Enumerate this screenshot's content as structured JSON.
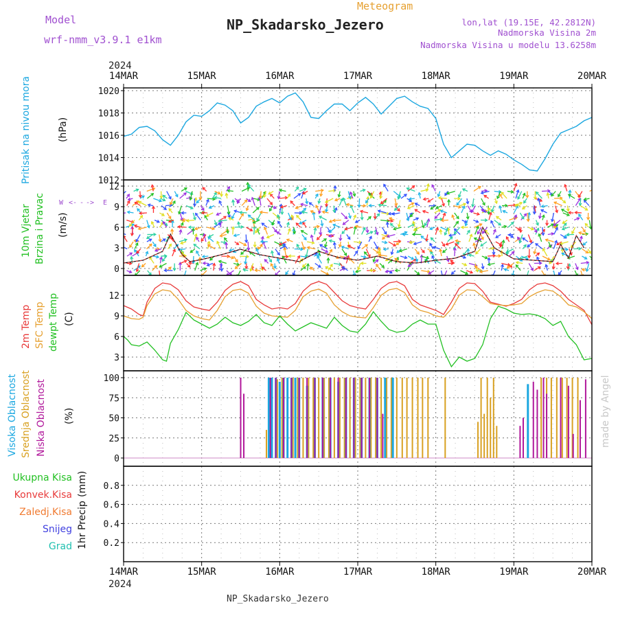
{
  "header": {
    "model_label": "Model",
    "model_name": "wrf-nmm_v3.9.1 e1km",
    "meteogram": "Meteogram",
    "station": "NP_Skadarsko_Jezero",
    "lonlat": "lon,lat (19.15E, 42.2812N)",
    "elev": "Nadmorska Visina 2m",
    "elev_model": "Nadmorska Visina u modelu 13.6258m",
    "footer_station": "NP_Skadarsko_Jezero",
    "credit": "made by Angel"
  },
  "colors": {
    "pressure": "#1ba7e0",
    "wind_green": "#22c022",
    "temp2m": "#e83a3a",
    "sfc": "#e6a030",
    "dewpt": "#22c022",
    "cloud_high": "#1ba7e0",
    "cloud_mid": "#d8a020",
    "cloud_low": "#b0169a",
    "violet": "#a050d0"
  },
  "chart_data": [
    {
      "type": "line",
      "panel": "pressure",
      "ylabel_title": "Pritisak na nivou mora",
      "ylabel_unit": "(hPa)",
      "ylim": [
        1012,
        1020
      ],
      "yticks": [
        "1012",
        "1014",
        "1016",
        "1018",
        "1020"
      ],
      "grid": true,
      "series": [
        {
          "x": [
            0,
            0.1,
            0.2,
            0.3,
            0.4,
            0.5,
            0.6,
            0.7,
            0.8,
            0.9,
            1.0,
            1.1,
            1.2,
            1.3,
            1.4,
            1.5,
            1.6,
            1.7,
            1.8,
            1.9,
            2.0,
            2.1,
            2.2,
            2.3,
            2.4,
            2.5,
            2.6,
            2.7,
            2.8,
            2.9,
            3.0,
            3.1,
            3.2,
            3.3,
            3.4,
            3.5,
            3.6,
            3.7,
            3.8,
            3.9,
            4.0,
            4.1,
            4.2,
            4.3,
            4.4,
            4.5,
            4.6,
            4.7,
            4.8,
            4.9,
            5.0,
            5.1,
            5.2,
            5.3,
            5.4,
            5.5,
            5.6,
            5.7,
            5.8,
            5.9,
            6.0
          ],
          "y": [
            1015.9,
            1016.1,
            1016.7,
            1016.8,
            1016.4,
            1015.6,
            1015.1,
            1016.0,
            1017.2,
            1017.8,
            1017.7,
            1018.2,
            1018.9,
            1018.7,
            1018.2,
            1017.1,
            1017.6,
            1018.6,
            1019.0,
            1019.3,
            1018.9,
            1019.5,
            1019.8,
            1019.0,
            1017.6,
            1017.5,
            1018.2,
            1018.8,
            1018.8,
            1018.2,
            1018.9,
            1019.4,
            1018.8,
            1017.9,
            1018.6,
            1019.3,
            1019.5,
            1019.0,
            1018.6,
            1018.4,
            1017.5,
            1015.2,
            1014.0,
            1014.6,
            1015.2,
            1015.1,
            1014.6,
            1014.2,
            1014.6,
            1014.3,
            1013.8,
            1013.4,
            1012.9,
            1012.8,
            1013.9,
            1015.2,
            1016.2,
            1016.5,
            1016.8,
            1017.3,
            1017.6
          ]
        }
      ]
    },
    {
      "type": "line",
      "panel": "wind",
      "ylabel_title_a": "10m Vjetar",
      "ylabel_title_b": "Brzina i Pravac",
      "ylabel_unit": "(m/s)",
      "compass": [
        "W",
        "<-",
        "-",
        "->",
        "E"
      ],
      "ylim": [
        -1,
        12.5
      ],
      "yticks": [
        "0",
        "3",
        "6",
        "9",
        "12"
      ],
      "grid": true,
      "series": [
        {
          "name": "speed",
          "x": [
            0,
            0.25,
            0.5,
            0.6,
            0.75,
            0.85,
            1.0,
            1.25,
            1.5,
            1.75,
            2.0,
            2.25,
            2.5,
            2.75,
            3.0,
            3.25,
            3.5,
            3.75,
            4.0,
            4.25,
            4.5,
            4.6,
            4.75,
            5.0,
            5.25,
            5.5,
            5.6,
            5.7,
            5.8,
            5.9
          ],
          "y": [
            0.8,
            1.2,
            2.5,
            5.0,
            2.0,
            1.0,
            1.3,
            2.0,
            2.8,
            2.0,
            1.5,
            1.0,
            2.5,
            1.6,
            1.2,
            1.8,
            1.0,
            0.8,
            1.2,
            1.5,
            2.5,
            6.0,
            3.0,
            1.4,
            1.2,
            1.0,
            3.5,
            1.5,
            4.8,
            3.0
          ]
        }
      ]
    },
    {
      "type": "line",
      "panel": "temperature",
      "ylabel_title_a": "2m Temp",
      "ylabel_title_b": "SFC Temp",
      "ylabel_title_c": "dewpt Temp",
      "ylabel_unit": "(C)",
      "ylim": [
        1,
        14.5
      ],
      "yticks": [
        "3",
        "6",
        "9",
        "12"
      ],
      "grid": true,
      "series": [
        {
          "name": "2m Temp",
          "x": [
            0,
            0.1,
            0.2,
            0.25,
            0.3,
            0.4,
            0.5,
            0.6,
            0.7,
            0.8,
            0.9,
            1.0,
            1.1,
            1.2,
            1.3,
            1.4,
            1.5,
            1.6,
            1.7,
            1.8,
            1.9,
            2.0,
            2.1,
            2.2,
            2.3,
            2.4,
            2.5,
            2.6,
            2.7,
            2.8,
            2.9,
            3.0,
            3.1,
            3.2,
            3.3,
            3.4,
            3.5,
            3.6,
            3.7,
            3.8,
            3.9,
            4.0,
            4.1,
            4.2,
            4.3,
            4.4,
            4.5,
            4.6,
            4.7,
            4.8,
            4.9,
            5.0,
            5.1,
            5.2,
            5.3,
            5.4,
            5.5,
            5.6,
            5.7,
            5.8,
            5.9,
            6.0
          ],
          "y": [
            10.5,
            10.0,
            9.2,
            9.0,
            11.0,
            13.0,
            13.8,
            13.6,
            12.8,
            11.2,
            10.3,
            10.0,
            9.8,
            11.0,
            12.7,
            13.6,
            14.0,
            13.4,
            11.4,
            10.6,
            10.0,
            10.2,
            10.0,
            10.8,
            12.6,
            13.6,
            14.0,
            13.6,
            12.4,
            11.2,
            10.5,
            10.2,
            10.0,
            11.4,
            13.0,
            13.8,
            14.0,
            13.4,
            11.4,
            10.6,
            10.2,
            9.8,
            9.2,
            11.0,
            13.0,
            13.8,
            13.7,
            12.6,
            11.0,
            10.7,
            10.4,
            10.8,
            11.4,
            12.8,
            13.6,
            13.8,
            13.4,
            12.6,
            11.4,
            10.6,
            9.8,
            7.7
          ]
        },
        {
          "name": "SFC Temp",
          "x": [
            0,
            0.1,
            0.2,
            0.25,
            0.3,
            0.4,
            0.5,
            0.6,
            0.7,
            0.8,
            0.9,
            1.0,
            1.1,
            1.2,
            1.3,
            1.4,
            1.5,
            1.6,
            1.7,
            1.8,
            1.9,
            2.0,
            2.1,
            2.2,
            2.3,
            2.4,
            2.5,
            2.6,
            2.7,
            2.8,
            2.9,
            3.0,
            3.1,
            3.2,
            3.3,
            3.4,
            3.5,
            3.6,
            3.7,
            3.8,
            3.9,
            4.0,
            4.1,
            4.2,
            4.3,
            4.4,
            4.5,
            4.6,
            4.7,
            4.8,
            4.9,
            5.0,
            5.1,
            5.2,
            5.3,
            5.4,
            5.5,
            5.6,
            5.7,
            5.8,
            5.9,
            6.0
          ],
          "y": [
            9.0,
            8.6,
            8.5,
            8.8,
            10.5,
            12.2,
            12.8,
            12.6,
            11.4,
            9.8,
            9.0,
            8.6,
            8.4,
            9.8,
            11.8,
            12.7,
            12.9,
            12.3,
            10.4,
            9.4,
            9.0,
            8.9,
            8.8,
            9.8,
            11.8,
            12.6,
            12.9,
            12.3,
            10.6,
            9.6,
            9.0,
            8.8,
            8.7,
            10.2,
            12.0,
            12.8,
            13.0,
            12.4,
            10.6,
            9.8,
            9.5,
            9.0,
            8.8,
            10.0,
            12.0,
            12.8,
            12.7,
            11.8,
            10.8,
            10.6,
            10.5,
            10.6,
            10.8,
            11.8,
            12.4,
            12.8,
            12.6,
            11.8,
            10.6,
            10.3,
            9.6,
            8.6
          ]
        },
        {
          "name": "dewpt Temp",
          "x": [
            0,
            0.05,
            0.1,
            0.2,
            0.3,
            0.4,
            0.5,
            0.55,
            0.6,
            0.7,
            0.8,
            0.9,
            1.0,
            1.1,
            1.2,
            1.3,
            1.4,
            1.5,
            1.6,
            1.7,
            1.8,
            1.9,
            2.0,
            2.1,
            2.2,
            2.3,
            2.4,
            2.5,
            2.6,
            2.7,
            2.8,
            2.9,
            3.0,
            3.1,
            3.2,
            3.3,
            3.4,
            3.5,
            3.6,
            3.7,
            3.8,
            3.9,
            4.0,
            4.1,
            4.2,
            4.3,
            4.4,
            4.5,
            4.6,
            4.7,
            4.8,
            4.9,
            5.0,
            5.1,
            5.2,
            5.3,
            5.4,
            5.5,
            5.6,
            5.7,
            5.8,
            5.9,
            6.0
          ],
          "y": [
            6.0,
            5.5,
            4.8,
            4.6,
            5.2,
            4.0,
            2.6,
            2.4,
            5.0,
            7.0,
            9.5,
            8.4,
            7.8,
            7.2,
            7.8,
            8.8,
            8.0,
            7.6,
            8.2,
            9.2,
            8.0,
            7.6,
            9.0,
            7.8,
            6.8,
            7.4,
            8.0,
            7.6,
            7.2,
            8.8,
            7.6,
            6.8,
            6.6,
            7.8,
            9.6,
            8.2,
            7.0,
            6.6,
            6.8,
            7.8,
            8.4,
            7.8,
            7.8,
            4.0,
            1.6,
            3.0,
            2.4,
            2.8,
            4.8,
            8.6,
            10.4,
            10.0,
            9.4,
            9.2,
            9.3,
            9.1,
            8.6,
            7.6,
            8.2,
            6.0,
            4.8,
            2.6,
            2.8
          ]
        }
      ]
    },
    {
      "type": "bar",
      "panel": "clouds",
      "ylabel_title_a": "Visoka Oblacnost",
      "ylabel_title_b": "Srednja Oblacnost",
      "ylabel_title_c": "Niska Oblacnost",
      "ylabel_unit": "(%)",
      "ylim": [
        0,
        100
      ],
      "yticks": [
        "0",
        "25",
        "50",
        "75",
        "100"
      ],
      "grid": true,
      "series": [
        {
          "name": "Visoka Oblacnost",
          "x": [
            1.86,
            1.9,
            1.95,
            2.0,
            2.05,
            2.1,
            2.15,
            2.2,
            2.25,
            2.35,
            2.45,
            2.55,
            2.65,
            2.75,
            2.85,
            2.95,
            3.05,
            3.15,
            3.25,
            3.35,
            3.45,
            5.18
          ],
          "values": [
            100,
            100,
            100,
            95,
            100,
            100,
            100,
            100,
            100,
            90,
            100,
            100,
            100,
            95,
            100,
            100,
            100,
            100,
            100,
            100,
            100,
            92
          ]
        },
        {
          "name": "Srednja Oblacnost",
          "x": [
            1.83,
            1.9,
            1.97,
            2.03,
            2.1,
            2.17,
            2.23,
            2.3,
            2.37,
            2.43,
            2.5,
            2.57,
            2.63,
            2.7,
            2.77,
            2.83,
            2.9,
            2.97,
            3.03,
            3.1,
            3.17,
            3.23,
            3.3,
            3.37,
            3.43,
            3.5,
            3.57,
            3.63,
            3.7,
            3.77,
            3.83,
            3.9,
            4.12,
            4.54,
            4.58,
            4.62,
            4.66,
            4.7,
            4.74,
            4.78,
            5.35,
            5.42,
            5.48,
            5.55,
            5.62,
            5.68,
            5.75,
            5.82
          ],
          "values": [
            35,
            100,
            98,
            100,
            100,
            100,
            100,
            100,
            100,
            100,
            100,
            100,
            100,
            100,
            100,
            100,
            100,
            100,
            100,
            100,
            100,
            100,
            100,
            100,
            100,
            100,
            100,
            100,
            100,
            100,
            100,
            100,
            100,
            45,
            100,
            55,
            100,
            75,
            100,
            40,
            100,
            100,
            100,
            100,
            100,
            100,
            100,
            100
          ]
        },
        {
          "name": "Niska Oblacnost",
          "x": [
            1.5,
            1.54,
            1.88,
            1.95,
            2.05,
            2.15,
            2.25,
            2.35,
            2.45,
            2.55,
            2.65,
            2.75,
            2.85,
            2.95,
            3.05,
            3.15,
            3.25,
            3.32,
            5.08,
            5.12,
            5.25,
            5.3,
            5.38,
            5.42,
            5.6,
            5.7,
            5.76,
            5.85,
            5.92
          ],
          "values": [
            100,
            80,
            100,
            100,
            100,
            100,
            100,
            100,
            100,
            100,
            100,
            100,
            100,
            100,
            100,
            100,
            100,
            55,
            40,
            50,
            95,
            85,
            100,
            80,
            100,
            90,
            30,
            72,
            98
          ]
        }
      ]
    },
    {
      "type": "line",
      "panel": "precipitation",
      "ylabel_title": "1hr Precip",
      "ylabel_unit": "(mm)",
      "legend": [
        "Ukupna Kisa",
        "Konvek.Kisa",
        "Zaledj.Kisa",
        "Snijeg",
        "Grad"
      ],
      "ylim": [
        0,
        1
      ],
      "yticks": [
        "0.2",
        "0.4",
        "0.6",
        "0.8"
      ],
      "grid": true,
      "series": []
    }
  ],
  "xaxis": {
    "year_top": "2024",
    "year_bottom": "2024",
    "labels": [
      "14MAR",
      "15MAR",
      "16MAR",
      "17MAR",
      "18MAR",
      "19MAR",
      "20MAR"
    ]
  }
}
